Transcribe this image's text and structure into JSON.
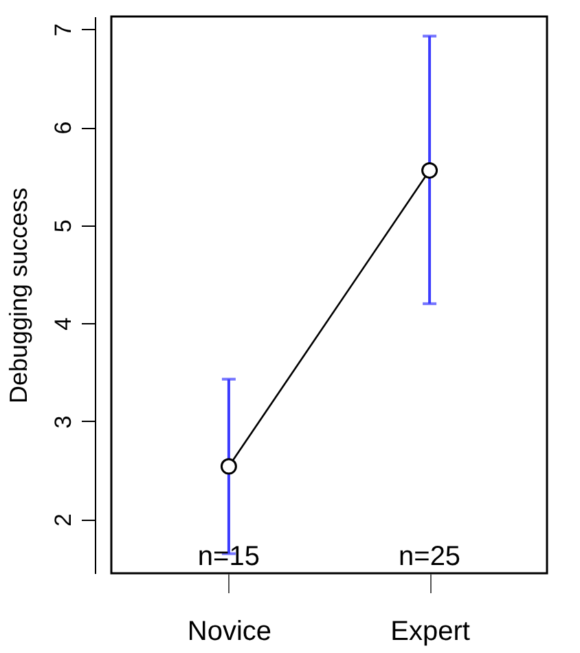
{
  "chart_data": {
    "type": "line",
    "ylabel": "Debugging success",
    "categories": [
      "Novice",
      "Expert"
    ],
    "series": [
      {
        "color": "#000000",
        "values": [
          2.54,
          5.56
        ],
        "errors": [
          [
            1.65,
            3.43
          ],
          [
            4.2,
            6.93
          ]
        ]
      }
    ],
    "ylim": [
      1.45,
      7.13
    ],
    "yticks": [
      2,
      3,
      4,
      5,
      6,
      7
    ],
    "grid": false,
    "marker": "circle",
    "line_style": "solid",
    "annotations": [
      "n=15",
      "n=25"
    ]
  }
}
